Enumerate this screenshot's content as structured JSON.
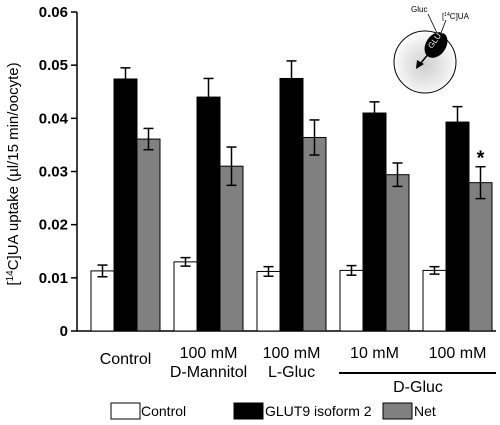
{
  "chart_data": {
    "type": "bar",
    "ylabel_pre": "[",
    "ylabel_sup": "14",
    "ylabel_post": "C]UA uptake (µl/15 min/oocyte)",
    "ylim": [
      0,
      0.06
    ],
    "yticks": [
      "0",
      "0.01",
      "0.02",
      "0.03",
      "0.04",
      "0.05",
      "0.06"
    ],
    "categories": [
      {
        "line1": "Control",
        "line2": ""
      },
      {
        "line1": "100 mM",
        "line2": "D-Mannitol"
      },
      {
        "line1": "100 mM",
        "line2": "L-Gluc"
      },
      {
        "line1": "10 mM",
        "line2": ""
      },
      {
        "line1": "100 mM",
        "line2": ""
      }
    ],
    "group_label": "D-Gluc",
    "series": [
      {
        "name": "Control",
        "color": "#ffffff",
        "values": [
          0.0113,
          0.013,
          0.0112,
          0.0114,
          0.0114
        ],
        "errors": [
          0.0011,
          0.0008,
          0.0009,
          0.0009,
          0.0007
        ]
      },
      {
        "name": "GLUT9 isoform 2",
        "color": "#000000",
        "values": [
          0.0474,
          0.044,
          0.0475,
          0.041,
          0.0393
        ],
        "errors": [
          0.0021,
          0.0035,
          0.0033,
          0.0021,
          0.0029
        ]
      },
      {
        "name": "Net",
        "color": "#808080",
        "values": [
          0.0361,
          0.031,
          0.0364,
          0.0294,
          0.0279
        ],
        "errors": [
          0.002,
          0.0036,
          0.0033,
          0.0022,
          0.003
        ]
      }
    ],
    "annotations": [
      {
        "text": "*",
        "series": 2,
        "category": 4
      }
    ],
    "legend_position": "bottom",
    "grid": false,
    "inset": {
      "gluc_label": "Gluc",
      "ua_pre": "[",
      "ua_sup": "14",
      "ua_post": "C]UA",
      "transporter_label": "GLUT9"
    }
  }
}
